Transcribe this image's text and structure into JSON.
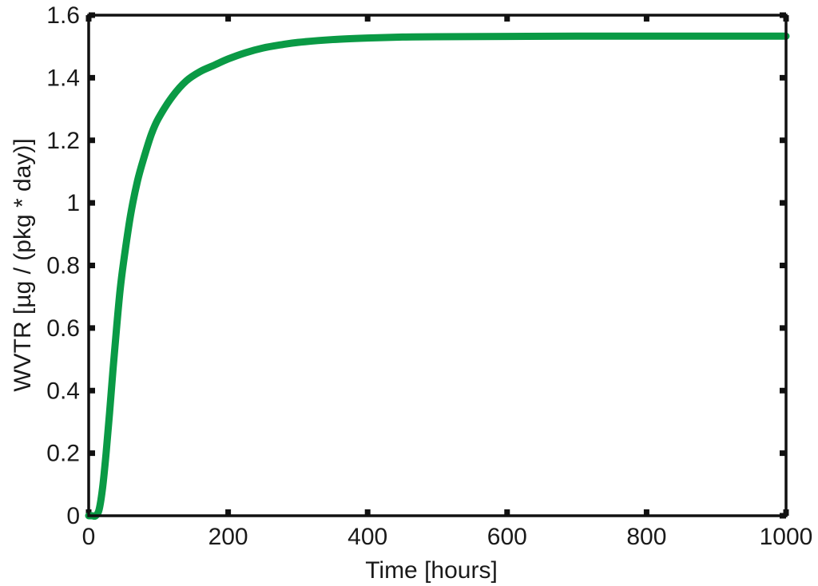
{
  "chart_data": {
    "type": "line",
    "title": "",
    "xlabel": "Time [hours]",
    "ylabel": "WVTR [µg / (pkg * day)]",
    "xlim": [
      0,
      1000
    ],
    "ylim": [
      0,
      1.6
    ],
    "xticks": [
      0,
      200,
      400,
      600,
      800,
      1000
    ],
    "xtick_labels": [
      "0",
      "200",
      "400",
      "600",
      "800",
      "1000"
    ],
    "yticks": [
      0,
      0.2,
      0.4,
      0.6,
      0.8,
      1.0,
      1.2,
      1.4,
      1.6
    ],
    "ytick_labels": [
      "0",
      "0.2",
      "0.4",
      "0.6",
      "0.8",
      "1",
      "1.2",
      "1.4",
      "1.6"
    ],
    "grid": false,
    "legend": "none",
    "series": [
      {
        "color": "#0a9a45",
        "x": [
          0,
          5,
          10,
          15,
          20,
          25,
          30,
          35,
          40,
          45,
          50,
          60,
          70,
          80,
          90,
          100,
          120,
          140,
          160,
          180,
          200,
          225,
          250,
          275,
          300,
          350,
          400,
          450,
          500,
          600,
          700,
          800,
          900,
          1000
        ],
        "y": [
          0,
          0,
          0,
          0.02,
          0.09,
          0.2,
          0.33,
          0.47,
          0.6,
          0.72,
          0.81,
          0.96,
          1.07,
          1.15,
          1.22,
          1.27,
          1.34,
          1.39,
          1.42,
          1.44,
          1.46,
          1.48,
          1.495,
          1.505,
          1.513,
          1.522,
          1.527,
          1.53,
          1.531,
          1.532,
          1.533,
          1.533,
          1.533,
          1.533
        ]
      }
    ]
  }
}
